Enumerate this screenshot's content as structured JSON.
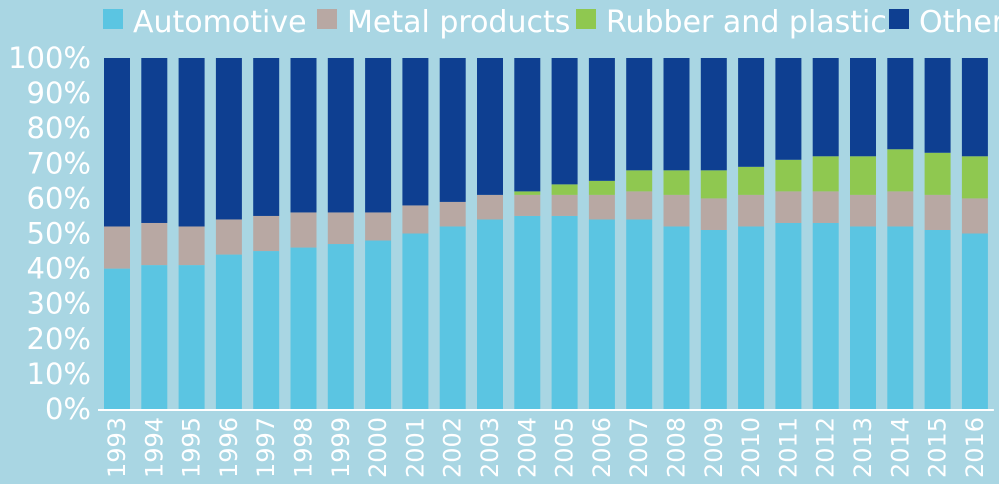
{
  "chart_data": {
    "type": "bar",
    "stacked": true,
    "normalized_percent": true,
    "title": "",
    "xlabel": "",
    "ylabel": "",
    "ylim": [
      0,
      100
    ],
    "y_ticks": [
      "0%",
      "10%",
      "20%",
      "30%",
      "40%",
      "50%",
      "60%",
      "70%",
      "80%",
      "90%",
      "100%"
    ],
    "grid": false,
    "legend_position": "top",
    "categories": [
      "1993",
      "1994",
      "1995",
      "1996",
      "1997",
      "1998",
      "1999",
      "2000",
      "2001",
      "2002",
      "2003",
      "2004",
      "2005",
      "2006",
      "2007",
      "2008",
      "2009",
      "2010",
      "2011",
      "2012",
      "2013",
      "2014",
      "2015",
      "2016"
    ],
    "series": [
      {
        "name": "Automotive",
        "color": "#5bc5e2",
        "values": [
          40,
          41,
          41,
          44,
          45,
          46,
          47,
          48,
          50,
          52,
          54,
          55,
          55,
          54,
          54,
          52,
          51,
          52,
          53,
          53,
          52,
          52,
          51,
          50
        ]
      },
      {
        "name": "Metal products",
        "color": "#b8a8a3",
        "values": [
          12,
          12,
          11,
          10,
          10,
          10,
          9,
          8,
          8,
          7,
          7,
          6,
          6,
          7,
          8,
          9,
          9,
          9,
          9,
          9,
          9,
          10,
          10,
          10
        ]
      },
      {
        "name": "Rubber and plastic",
        "color": "#8fc850",
        "values": [
          0,
          0,
          0,
          0,
          0,
          0,
          0,
          0,
          0,
          0,
          0,
          1,
          3,
          4,
          6,
          7,
          8,
          8,
          9,
          10,
          11,
          12,
          12,
          12
        ]
      },
      {
        "name": "Other",
        "color": "#0e3f91",
        "values": [
          48,
          47,
          48,
          46,
          45,
          44,
          44,
          44,
          42,
          41,
          39,
          38,
          36,
          35,
          32,
          32,
          32,
          31,
          29,
          28,
          28,
          26,
          27,
          28
        ]
      }
    ]
  }
}
